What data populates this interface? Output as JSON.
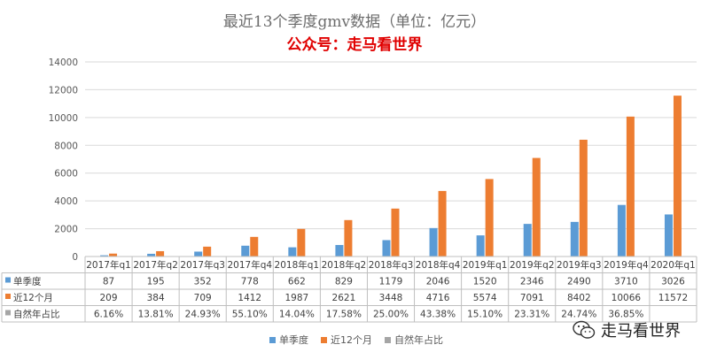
{
  "header": {
    "title": "最近13个季度gmv数据（单位：亿元）",
    "subtitle": "公众号：走马看世界"
  },
  "colors": {
    "series1": "#5b9bd5",
    "series2": "#ed7d31",
    "series3": "#a5a5a5",
    "subtitle": "#e00000",
    "grid": "#d9d9d9"
  },
  "watermark": {
    "icon": "wechat-icon",
    "text": "走马看世界"
  },
  "chart_data": {
    "type": "bar",
    "title": "最近13个季度gmv数据（单位：亿元）",
    "categories": [
      "2017年q1",
      "2017年q2",
      "2017年q3",
      "2017年q4",
      "2018年q1",
      "2018年q2",
      "2018年q3",
      "2018年q4",
      "2019年q1",
      "2019年q2",
      "2019年q3",
      "2019年q4",
      "2020年q1"
    ],
    "ylim": [
      0,
      14000
    ],
    "yticks": [
      "0",
      "2000",
      "4000",
      "6000",
      "8000",
      "10000",
      "12000",
      "14000"
    ],
    "grid": true,
    "legend": "bottom",
    "series": [
      {
        "name": "单季度",
        "color": "#5b9bd5",
        "values": [
          87,
          195,
          352,
          778,
          662,
          829,
          1179,
          2046,
          1520,
          2346,
          2490,
          3710,
          3026
        ],
        "labels": [
          "87",
          "195",
          "352",
          "778",
          "662",
          "829",
          "1179",
          "2046",
          "1520",
          "2346",
          "2490",
          "3710",
          "3026"
        ]
      },
      {
        "name": "近12个月",
        "color": "#ed7d31",
        "values": [
          209,
          384,
          709,
          1412,
          1987,
          2621,
          3448,
          4716,
          5574,
          7091,
          8402,
          10066,
          11572
        ],
        "labels": [
          "209",
          "384",
          "709",
          "1412",
          "1987",
          "2621",
          "3448",
          "4716",
          "5574",
          "7091",
          "8402",
          "10066",
          "11572"
        ]
      },
      {
        "name": "自然年占比",
        "color": "#a5a5a5",
        "values": [
          6.16,
          13.81,
          24.93,
          55.1,
          14.04,
          17.58,
          25.0,
          43.38,
          15.1,
          23.31,
          24.74,
          36.85,
          null
        ],
        "labels": [
          "6.16%",
          "13.81%",
          "24.93%",
          "55.10%",
          "14.04%",
          "17.58%",
          "25.00%",
          "43.38%",
          "15.10%",
          "23.31%",
          "24.74%",
          "36.85%",
          ""
        ]
      }
    ]
  }
}
